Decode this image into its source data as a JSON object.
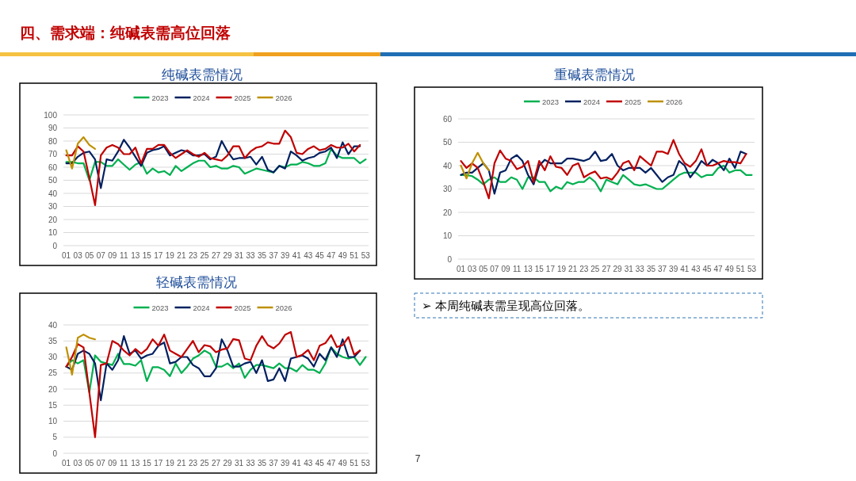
{
  "chart_data": [
    {
      "type": "line",
      "title": "纯碱表需情况",
      "categories": [
        "01",
        null,
        "03",
        null,
        "05",
        null,
        "07",
        null,
        "09",
        null,
        "11",
        null,
        "13",
        null,
        "15",
        null,
        "17",
        null,
        "19",
        null,
        "21",
        null,
        "23",
        null,
        "25",
        null,
        "27",
        null,
        "29",
        null,
        "31",
        null,
        "33",
        null,
        "35",
        null,
        "37",
        null,
        "39",
        null,
        "41",
        null,
        "43",
        null,
        "45",
        null,
        "47",
        null,
        "49",
        null,
        "51",
        null,
        "53"
      ],
      "ylim": [
        0,
        100
      ],
      "yticks": [
        0,
        10,
        20,
        30,
        40,
        50,
        60,
        70,
        80,
        90,
        100
      ],
      "grid": "y",
      "legend": "top",
      "marker": "none",
      "line_style": "solid",
      "series": [
        {
          "name": "2023",
          "color": "#00b050",
          "values": [
            64,
            64,
            63,
            63,
            50,
            64,
            64,
            61,
            61,
            66,
            62,
            58,
            62,
            64,
            55,
            59,
            56,
            57,
            54,
            61,
            57,
            60,
            63,
            65,
            65,
            60,
            61,
            59,
            59,
            61,
            60,
            55,
            57,
            59,
            58,
            57,
            56,
            61,
            60,
            62,
            62,
            64,
            63,
            61,
            61,
            63,
            74,
            69,
            67,
            67,
            67,
            63,
            66
          ]
        },
        {
          "name": "2024",
          "color": "#002060",
          "values": [
            63,
            63,
            68,
            71,
            72,
            66,
            44,
            66,
            65,
            72,
            81,
            75,
            68,
            61,
            71,
            73,
            74,
            76,
            69,
            71,
            73,
            72,
            69,
            69,
            70,
            66,
            68,
            80,
            72,
            66,
            67,
            67,
            68,
            62,
            68,
            58,
            56,
            61,
            59,
            72,
            69,
            65,
            67,
            68,
            71,
            72,
            75,
            67,
            79,
            70,
            76,
            76,
            null
          ]
        },
        {
          "name": "2025",
          "color": "#c00000",
          "values": [
            69,
            69,
            76,
            72,
            52,
            31,
            69,
            75,
            77,
            75,
            70,
            70,
            75,
            63,
            74,
            74,
            77,
            77,
            71,
            67,
            70,
            73,
            70,
            68,
            71,
            67,
            66,
            65,
            69,
            76,
            76,
            67,
            72,
            75,
            76,
            79,
            78,
            78,
            88,
            83,
            71,
            70,
            74,
            76,
            73,
            74,
            77,
            75,
            75,
            78,
            72,
            77,
            null
          ]
        },
        {
          "name": "2026",
          "color": "#bf9000",
          "values": [
            73,
            59,
            78,
            83,
            77,
            74,
            null,
            null,
            null,
            null,
            null,
            null,
            null,
            null,
            null,
            null,
            null,
            null,
            null,
            null,
            null,
            null,
            null,
            null,
            null,
            null,
            null,
            null,
            null,
            null,
            null,
            null,
            null,
            null,
            null,
            null,
            null,
            null,
            null,
            null,
            null,
            null,
            null,
            null,
            null,
            null,
            null,
            null,
            null,
            null,
            null,
            null,
            null
          ]
        }
      ]
    },
    {
      "type": "line",
      "title": "重碱表需情况",
      "categories": [
        "01",
        null,
        "03",
        null,
        "05",
        null,
        "07",
        null,
        "09",
        null,
        "11",
        null,
        "13",
        null,
        "15",
        null,
        "17",
        null,
        "19",
        null,
        "21",
        null,
        "23",
        null,
        "25",
        null,
        "27",
        null,
        "29",
        null,
        "31",
        null,
        "33",
        null,
        "35",
        null,
        "37",
        null,
        "39",
        null,
        "41",
        null,
        "43",
        null,
        "45",
        null,
        "47",
        null,
        "49",
        null,
        "51",
        null,
        "53"
      ],
      "ylim": [
        0,
        60
      ],
      "yticks": [
        0,
        10,
        20,
        30,
        40,
        50,
        60
      ],
      "grid": "y",
      "legend": "top",
      "marker": "none",
      "line_style": "solid",
      "series": [
        {
          "name": "2023",
          "color": "#00b050",
          "values": [
            36,
            36,
            35.5,
            34,
            32,
            34,
            35,
            33,
            33,
            35,
            34,
            30,
            35,
            35,
            33,
            33,
            29,
            31,
            30,
            33,
            32,
            33,
            33,
            35,
            33,
            29,
            34,
            33,
            32,
            36,
            34,
            32,
            31.5,
            32,
            31,
            30,
            30,
            32,
            34,
            36,
            37,
            37,
            37,
            35,
            36,
            36,
            39,
            40,
            37,
            38,
            38,
            36,
            36
          ]
        },
        {
          "name": "2024",
          "color": "#002060",
          "values": [
            36,
            37,
            37,
            39,
            41,
            38,
            28,
            37,
            38,
            43,
            44.5,
            42,
            36,
            32,
            40,
            42.5,
            41,
            41,
            41,
            43,
            43,
            42.5,
            42,
            43,
            46,
            42,
            42.5,
            45,
            40,
            38,
            39,
            39,
            39,
            37,
            39,
            36,
            33,
            35,
            36,
            42,
            40,
            35,
            38,
            42,
            40,
            42.5,
            41,
            38,
            43,
            39,
            46,
            45,
            null
          ]
        },
        {
          "name": "2025",
          "color": "#c00000",
          "values": [
            42,
            39,
            41,
            39,
            33,
            26,
            41,
            46.5,
            43,
            42,
            38.5,
            39.5,
            42,
            33,
            42,
            38,
            44,
            39.5,
            39,
            36,
            40,
            41,
            35,
            36.5,
            37.5,
            34.5,
            35,
            34,
            37,
            41,
            42,
            38,
            44,
            42,
            40,
            46,
            46,
            45,
            51,
            45,
            41,
            39.5,
            42,
            47,
            40,
            40,
            41,
            42,
            41.5,
            41.5,
            41,
            45,
            null
          ]
        },
        {
          "name": "2026",
          "color": "#bf9000",
          "values": [
            40,
            34.5,
            41,
            45.5,
            41,
            38,
            null,
            null,
            null,
            null,
            null,
            null,
            null,
            null,
            null,
            null,
            null,
            null,
            null,
            null,
            null,
            null,
            null,
            null,
            null,
            null,
            null,
            null,
            null,
            null,
            null,
            null,
            null,
            null,
            null,
            null,
            null,
            null,
            null,
            null,
            null,
            null,
            null,
            null,
            null,
            null,
            null,
            null,
            null,
            null,
            null,
            null,
            null
          ]
        }
      ]
    },
    {
      "type": "line",
      "title": "轻碱表需情况",
      "categories": [
        "01",
        null,
        "03",
        null,
        "05",
        null,
        "07",
        null,
        "09",
        null,
        "11",
        null,
        "13",
        null,
        "15",
        null,
        "17",
        null,
        "19",
        null,
        "21",
        null,
        "23",
        null,
        "25",
        null,
        "27",
        null,
        "29",
        null,
        "31",
        null,
        "33",
        null,
        "35",
        null,
        "37",
        null,
        "39",
        null,
        "41",
        null,
        "43",
        null,
        "45",
        null,
        "47",
        null,
        "49",
        null,
        "51",
        null,
        "53"
      ],
      "ylim": [
        0,
        40
      ],
      "yticks": [
        0,
        5,
        10,
        15,
        20,
        25,
        30,
        35,
        40
      ],
      "grid": "y",
      "legend": "top",
      "marker": "none",
      "line_style": "solid",
      "series": [
        {
          "name": "2023",
          "color": "#00b050",
          "values": [
            27,
            29,
            28,
            29,
            19,
            30.5,
            28.5,
            28,
            27.5,
            31,
            27.8,
            27.8,
            27.3,
            29,
            22.5,
            26.8,
            26.8,
            26,
            24,
            28,
            25,
            27,
            29.5,
            30.5,
            32,
            31,
            27,
            27,
            28,
            26.5,
            28,
            23.5,
            26,
            27.5,
            27.5,
            27,
            26.5,
            28,
            26.5,
            26.5,
            25.5,
            27.5,
            26,
            26,
            25,
            28,
            33,
            31,
            30,
            29.5,
            30,
            27.5,
            30
          ]
        },
        {
          "name": "2024",
          "color": "#002060",
          "values": [
            27,
            26,
            31,
            32,
            31,
            28,
            16.5,
            28,
            26,
            29,
            36.5,
            31,
            32,
            29.5,
            30.5,
            31,
            33.5,
            34.5,
            28,
            28.5,
            30,
            30,
            27.5,
            26.5,
            24,
            24,
            26.5,
            35.5,
            32,
            27,
            27,
            28,
            28.5,
            25,
            29,
            22.5,
            23,
            26.5,
            22.5,
            29.5,
            30,
            30.5,
            29.5,
            27,
            31,
            29,
            33,
            30,
            35.5,
            30,
            30,
            32,
            null
          ]
        },
        {
          "name": "2025",
          "color": "#c00000",
          "values": [
            27,
            30,
            34,
            33,
            19,
            5,
            27.5,
            28,
            35,
            34,
            32,
            30.5,
            32.5,
            31,
            32.5,
            35.5,
            33.5,
            37,
            32,
            31,
            30,
            32.5,
            35,
            31.5,
            33.7,
            33.3,
            31.5,
            32.3,
            32.7,
            35.6,
            35.2,
            29.5,
            29,
            33.5,
            36.5,
            33.7,
            32.7,
            34.2,
            36.9,
            37.8,
            30,
            30.7,
            32.2,
            29,
            33.5,
            34.3,
            36.8,
            33.1,
            33.7,
            36.2,
            30.7,
            32,
            null
          ]
        },
        {
          "name": "2026",
          "color": "#bf9000",
          "values": [
            33,
            24.5,
            36,
            37,
            36,
            35.5,
            null,
            null,
            null,
            null,
            null,
            null,
            null,
            null,
            null,
            null,
            null,
            null,
            null,
            null,
            null,
            null,
            null,
            null,
            null,
            null,
            null,
            null,
            null,
            null,
            null,
            null,
            null,
            null,
            null,
            null,
            null,
            null,
            null,
            null,
            null,
            null,
            null,
            null,
            null,
            null,
            null,
            null,
            null,
            null,
            null,
            null,
            null
          ]
        }
      ]
    },
    {
      "type": "other",
      "title": "四、需求端：纯碱表需高位回落",
      "annotations": [
        "➢ 本周纯碱表需呈现高位回落。",
        "7"
      ]
    }
  ]
}
